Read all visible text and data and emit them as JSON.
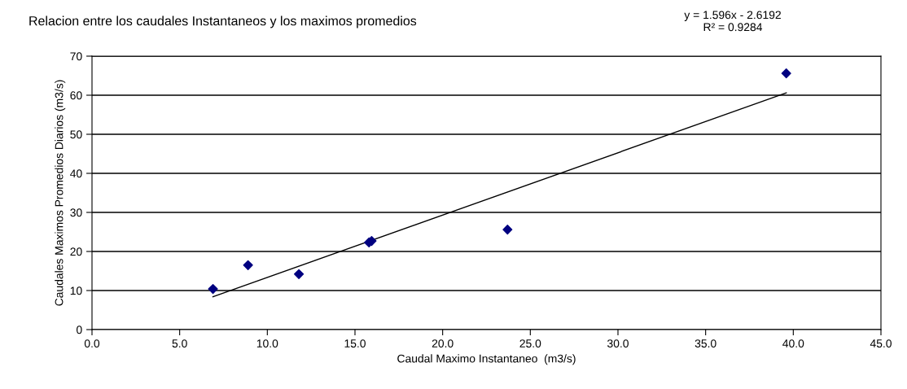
{
  "chart_data": {
    "type": "scatter",
    "title": "Relacion entre los caudales Instantaneos y los maximos promedios",
    "xlabel": "Caudal Maximo Instantaneo  (m3/s)",
    "ylabel": "Caudales Maximos Promedios Diarios (m3/s)",
    "annotations": [
      "y = 1.596x - 2.6192\nR² = 0.9284"
    ],
    "series": [
      {
        "color": "#000080",
        "marker": "diamond",
        "x": [
          6.9,
          8.9,
          11.8,
          15.8,
          15.95,
          23.7,
          39.6
        ],
        "values": [
          10.4,
          16.5,
          14.2,
          22.3,
          22.7,
          25.6,
          65.6
        ]
      },
      {
        "type": "line",
        "color": "#000000",
        "marker": "none",
        "line_style": "solid",
        "x": [
          6.9,
          39.6
        ],
        "values": [
          8.4,
          60.6
        ]
      }
    ],
    "xlim": [
      0,
      45
    ],
    "xticks": [
      {
        "value": 0,
        "label": "0.0"
      },
      {
        "value": 5,
        "label": "5.0"
      },
      {
        "value": 10,
        "label": "10.0"
      },
      {
        "value": 15,
        "label": "15.0"
      },
      {
        "value": 20,
        "label": "20.0"
      },
      {
        "value": 25,
        "label": "25.0"
      },
      {
        "value": 30,
        "label": "30.0"
      },
      {
        "value": 35,
        "label": "35.0"
      },
      {
        "value": 40,
        "label": "40.0"
      },
      {
        "value": 45,
        "label": "45.0"
      }
    ],
    "ylim": [
      0,
      70
    ],
    "yticks": [
      0,
      10,
      20,
      30,
      40,
      50,
      60,
      70
    ],
    "grid": "y",
    "legend": false
  }
}
